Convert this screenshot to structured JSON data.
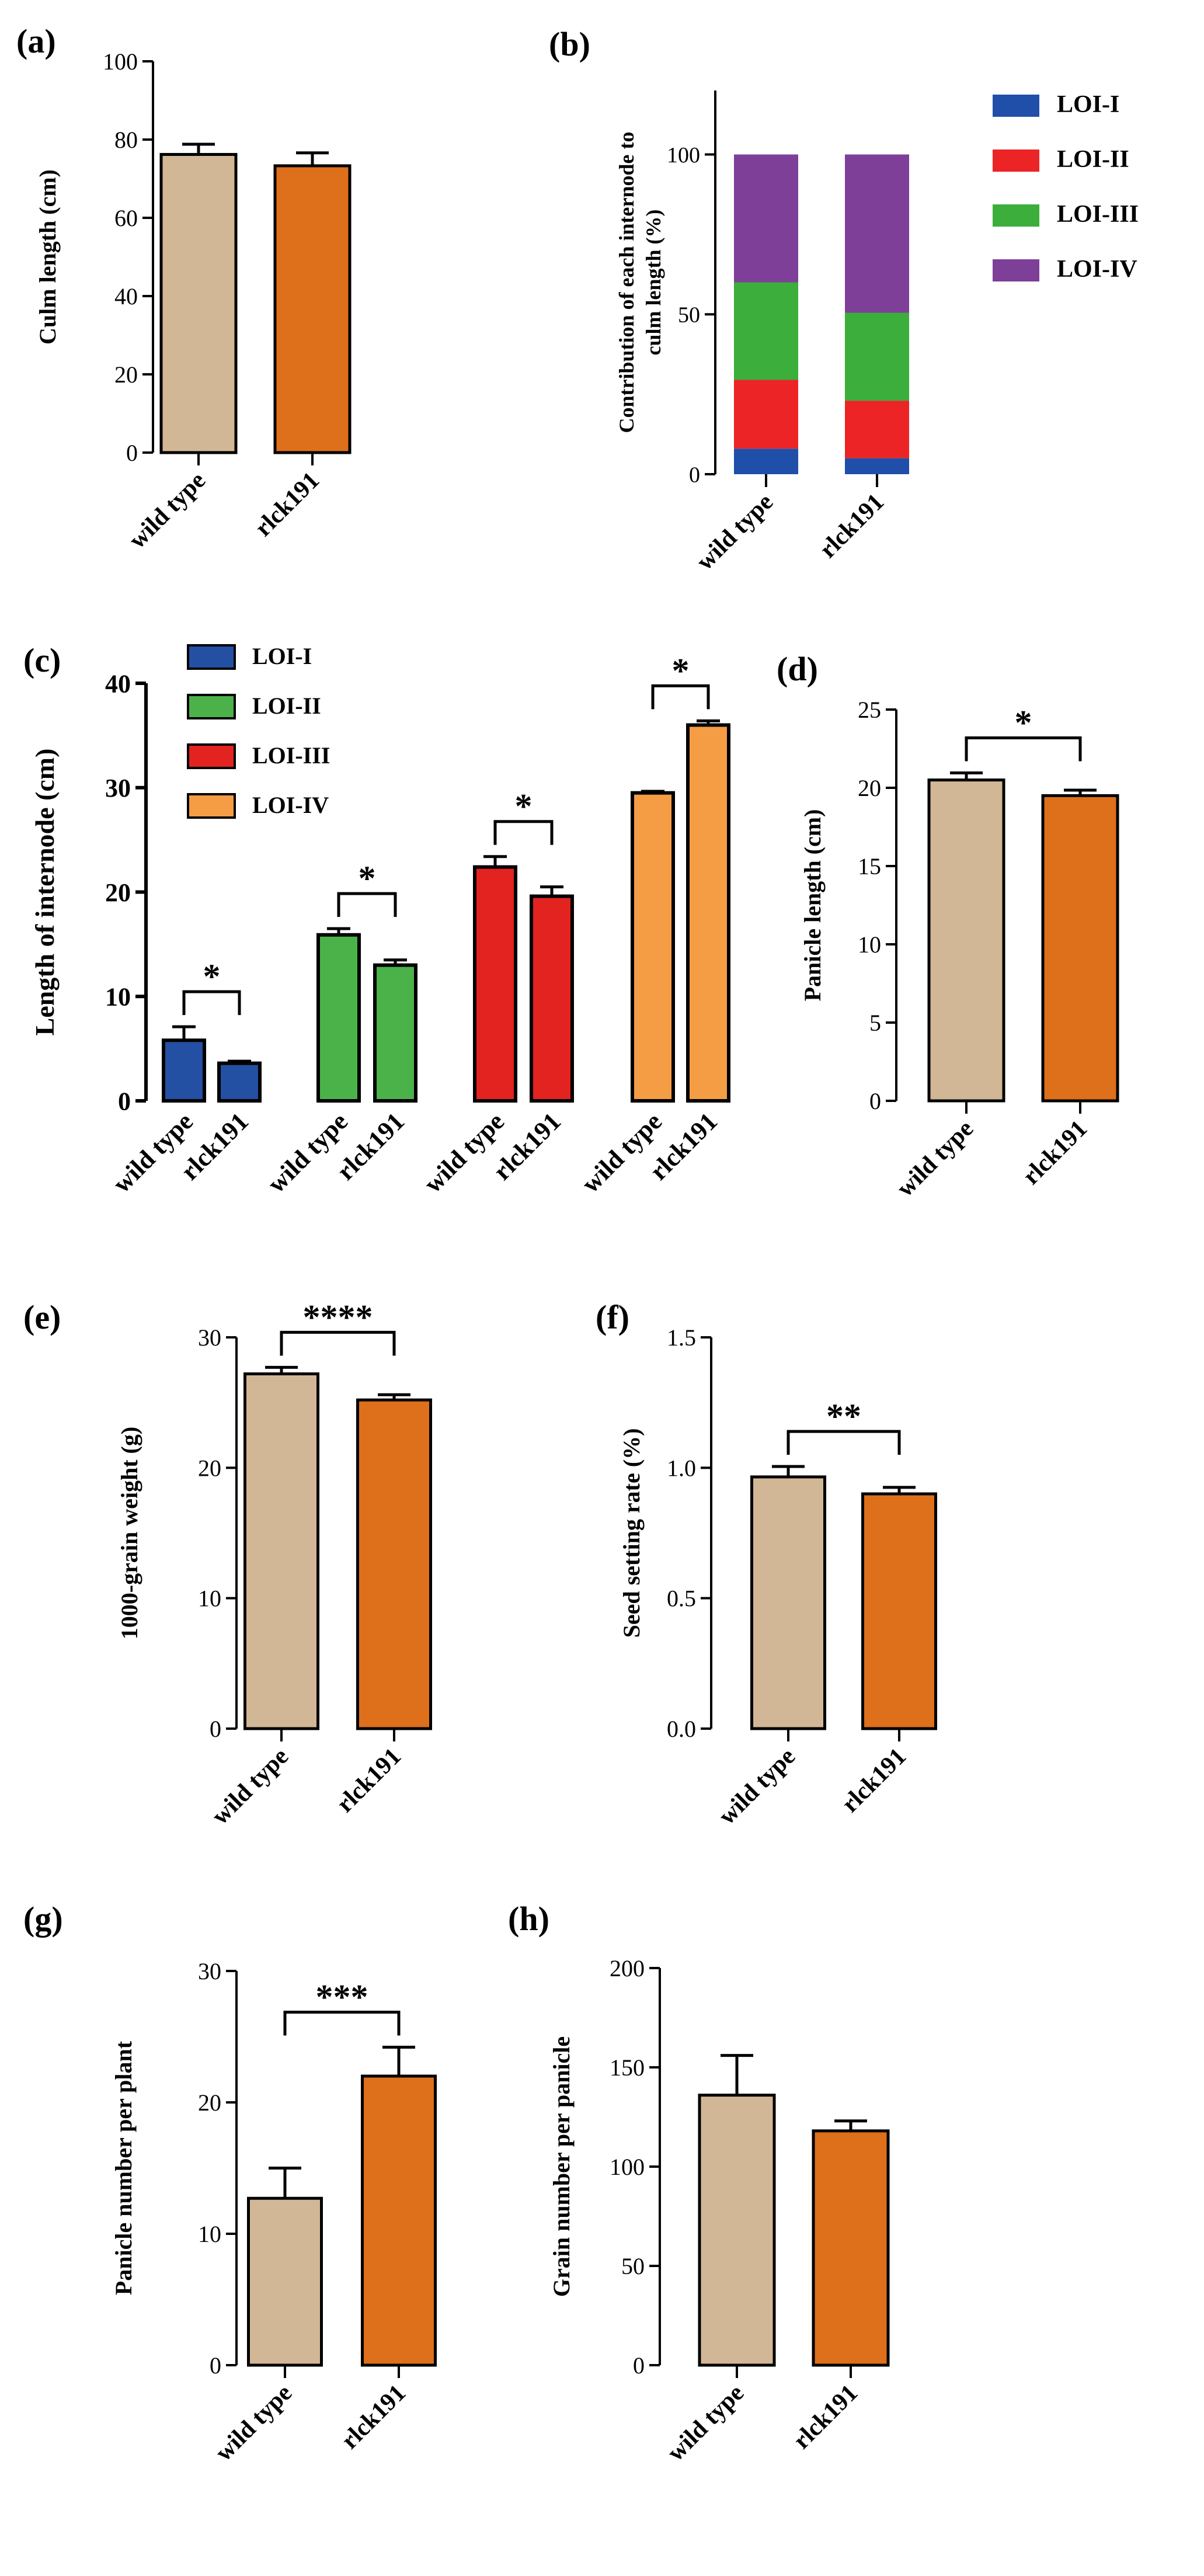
{
  "colors": {
    "wild_type": "#d2b796",
    "rlck191": "#de6f1b",
    "loi_bar": [
      "#2350a3",
      "#4bb24a",
      "#e3231f",
      "#f49d45"
    ],
    "stack": [
      "#1f4fa8",
      "#ec2426",
      "#3bae3b",
      "#7e3f98"
    ]
  },
  "chart_data": [
    {
      "id": "a",
      "panel_label": "(a)",
      "type": "bar",
      "categories": [
        "wild type",
        "rlck191"
      ],
      "values": [
        76.2,
        73.3
      ],
      "errors": [
        2.6,
        3.3
      ],
      "ylabel": "Culm length (cm)",
      "ylim": [
        0,
        100
      ],
      "yticks": [
        "0",
        "20",
        "40",
        "60",
        "80",
        "100"
      ]
    },
    {
      "id": "b",
      "panel_label": "(b)",
      "type": "bar",
      "stacked": true,
      "categories": [
        "wild type",
        "rlck191"
      ],
      "series": [
        {
          "name": "LOI-I",
          "values": [
            8,
            5
          ]
        },
        {
          "name": "LOI-II",
          "values": [
            21.5,
            18
          ]
        },
        {
          "name": "LOI-III",
          "values": [
            30.5,
            27.5
          ]
        },
        {
          "name": "LOI-IV",
          "values": [
            40,
            49.5
          ]
        }
      ],
      "ylabel": [
        "Contribution of each internode to",
        "culm length (%)"
      ],
      "ylim": [
        0,
        120
      ],
      "yticks": [
        "0",
        "50",
        "100"
      ],
      "legend": "right"
    },
    {
      "id": "c",
      "panel_label": "(c)",
      "type": "bar",
      "group_names": [
        "LOI-I",
        "LOI-II",
        "LOI-III",
        "LOI-IV"
      ],
      "categories": [
        "wild type",
        "rlck191",
        "wild type",
        "rlck191",
        "wild type",
        "rlck191",
        "wild type",
        "rlck191"
      ],
      "values": [
        5.8,
        3.6,
        15.9,
        13.0,
        22.4,
        19.6,
        29.5,
        36.0
      ],
      "errors": [
        1.3,
        0.2,
        0.6,
        0.5,
        1.0,
        0.9,
        0.15,
        0.4
      ],
      "significance": [
        "*",
        "*",
        "*",
        "*"
      ],
      "ylabel": "Length of internode (cm)",
      "ylim": [
        0,
        40
      ],
      "yticks": [
        "0",
        "10",
        "20",
        "30",
        "40"
      ],
      "legend": "top-left"
    },
    {
      "id": "d",
      "panel_label": "(d)",
      "type": "bar",
      "categories": [
        "wild type",
        "rlck191"
      ],
      "values": [
        20.5,
        19.5
      ],
      "errors": [
        0.45,
        0.35
      ],
      "significance": "*",
      "ylabel": "Panicle length (cm)",
      "ylim": [
        0,
        25
      ],
      "yticks": [
        "0",
        "5",
        "10",
        "15",
        "20",
        "25"
      ]
    },
    {
      "id": "e",
      "panel_label": "(e)",
      "type": "bar",
      "categories": [
        "wild type",
        "rlck191"
      ],
      "values": [
        27.2,
        25.2
      ],
      "errors": [
        0.5,
        0.4
      ],
      "significance": "****",
      "ylabel": "1000-grain weight (g)",
      "ylim": [
        0,
        30
      ],
      "yticks": [
        "0",
        "10",
        "20",
        "30"
      ]
    },
    {
      "id": "f",
      "panel_label": "(f)",
      "type": "bar",
      "categories": [
        "wild type",
        "rlck191"
      ],
      "values": [
        0.965,
        0.9
      ],
      "errors": [
        0.04,
        0.025
      ],
      "significance": "**",
      "ylabel": "Seed setting rate (%)",
      "ylim": [
        0,
        1.5
      ],
      "yticks": [
        "0.0",
        "0.5",
        "1.0",
        "1.5"
      ]
    },
    {
      "id": "g",
      "panel_label": "(g)",
      "type": "bar",
      "categories": [
        "wild type",
        "rlck191"
      ],
      "values": [
        12.7,
        22.0
      ],
      "errors": [
        2.3,
        2.2
      ],
      "significance": "***",
      "ylabel": "Panicle number per plant",
      "ylim": [
        0,
        30
      ],
      "yticks": [
        "0",
        "10",
        "20",
        "30"
      ]
    },
    {
      "id": "h",
      "panel_label": "(h)",
      "type": "bar",
      "categories": [
        "wild type",
        "rlck191"
      ],
      "values": [
        136,
        118
      ],
      "errors": [
        20,
        5
      ],
      "ylabel": "Grain number per panicle",
      "ylim": [
        0,
        200
      ],
      "yticks": [
        "0",
        "50",
        "100",
        "150",
        "200"
      ]
    }
  ]
}
